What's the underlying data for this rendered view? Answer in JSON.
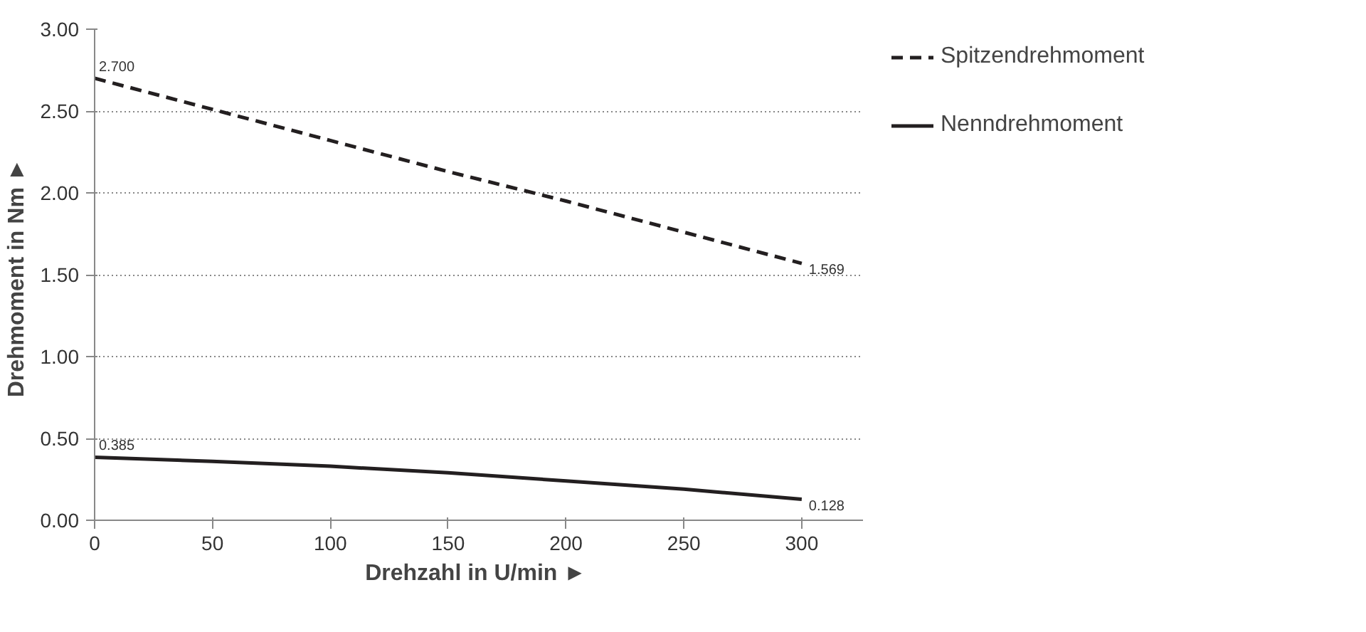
{
  "chart_data": {
    "type": "line",
    "xlabel": "Drehzahl in U/min  ►",
    "ylabel": "Drehmoment in Nm  ►",
    "x": [
      0,
      50,
      100,
      150,
      200,
      250,
      300
    ],
    "series": [
      {
        "name": "Spitzendrehmoment",
        "color": "#231f20",
        "line_style": "dashed",
        "values": [
          2.7,
          2.51,
          2.32,
          2.13,
          1.95,
          1.76,
          1.569
        ],
        "value_labels": [
          "2.700",
          null,
          null,
          null,
          null,
          null,
          "1.569"
        ]
      },
      {
        "name": "Nenndrehmoment",
        "color": "#231f20",
        "line_style": "solid",
        "values": [
          0.385,
          0.36,
          0.33,
          0.29,
          0.24,
          0.19,
          0.128
        ],
        "value_labels": [
          "0.385",
          null,
          null,
          null,
          null,
          null,
          "0.128"
        ]
      }
    ],
    "xlim": [
      0,
      326
    ],
    "xticks": [
      0,
      50,
      100,
      150,
      200,
      250,
      300
    ],
    "ylim": [
      0,
      3
    ],
    "yticks": [
      {
        "value": 0,
        "label": "0.00"
      },
      {
        "value": 0.5,
        "label": "0.50"
      },
      {
        "value": 1,
        "label": "1.00"
      },
      {
        "value": 1.5,
        "label": "1.50"
      },
      {
        "value": 2,
        "label": "2.00"
      },
      {
        "value": 2.5,
        "label": "2.50"
      },
      {
        "value": 3,
        "label": "3.00"
      }
    ],
    "grid": "y",
    "legend": "right",
    "marker": "none"
  }
}
